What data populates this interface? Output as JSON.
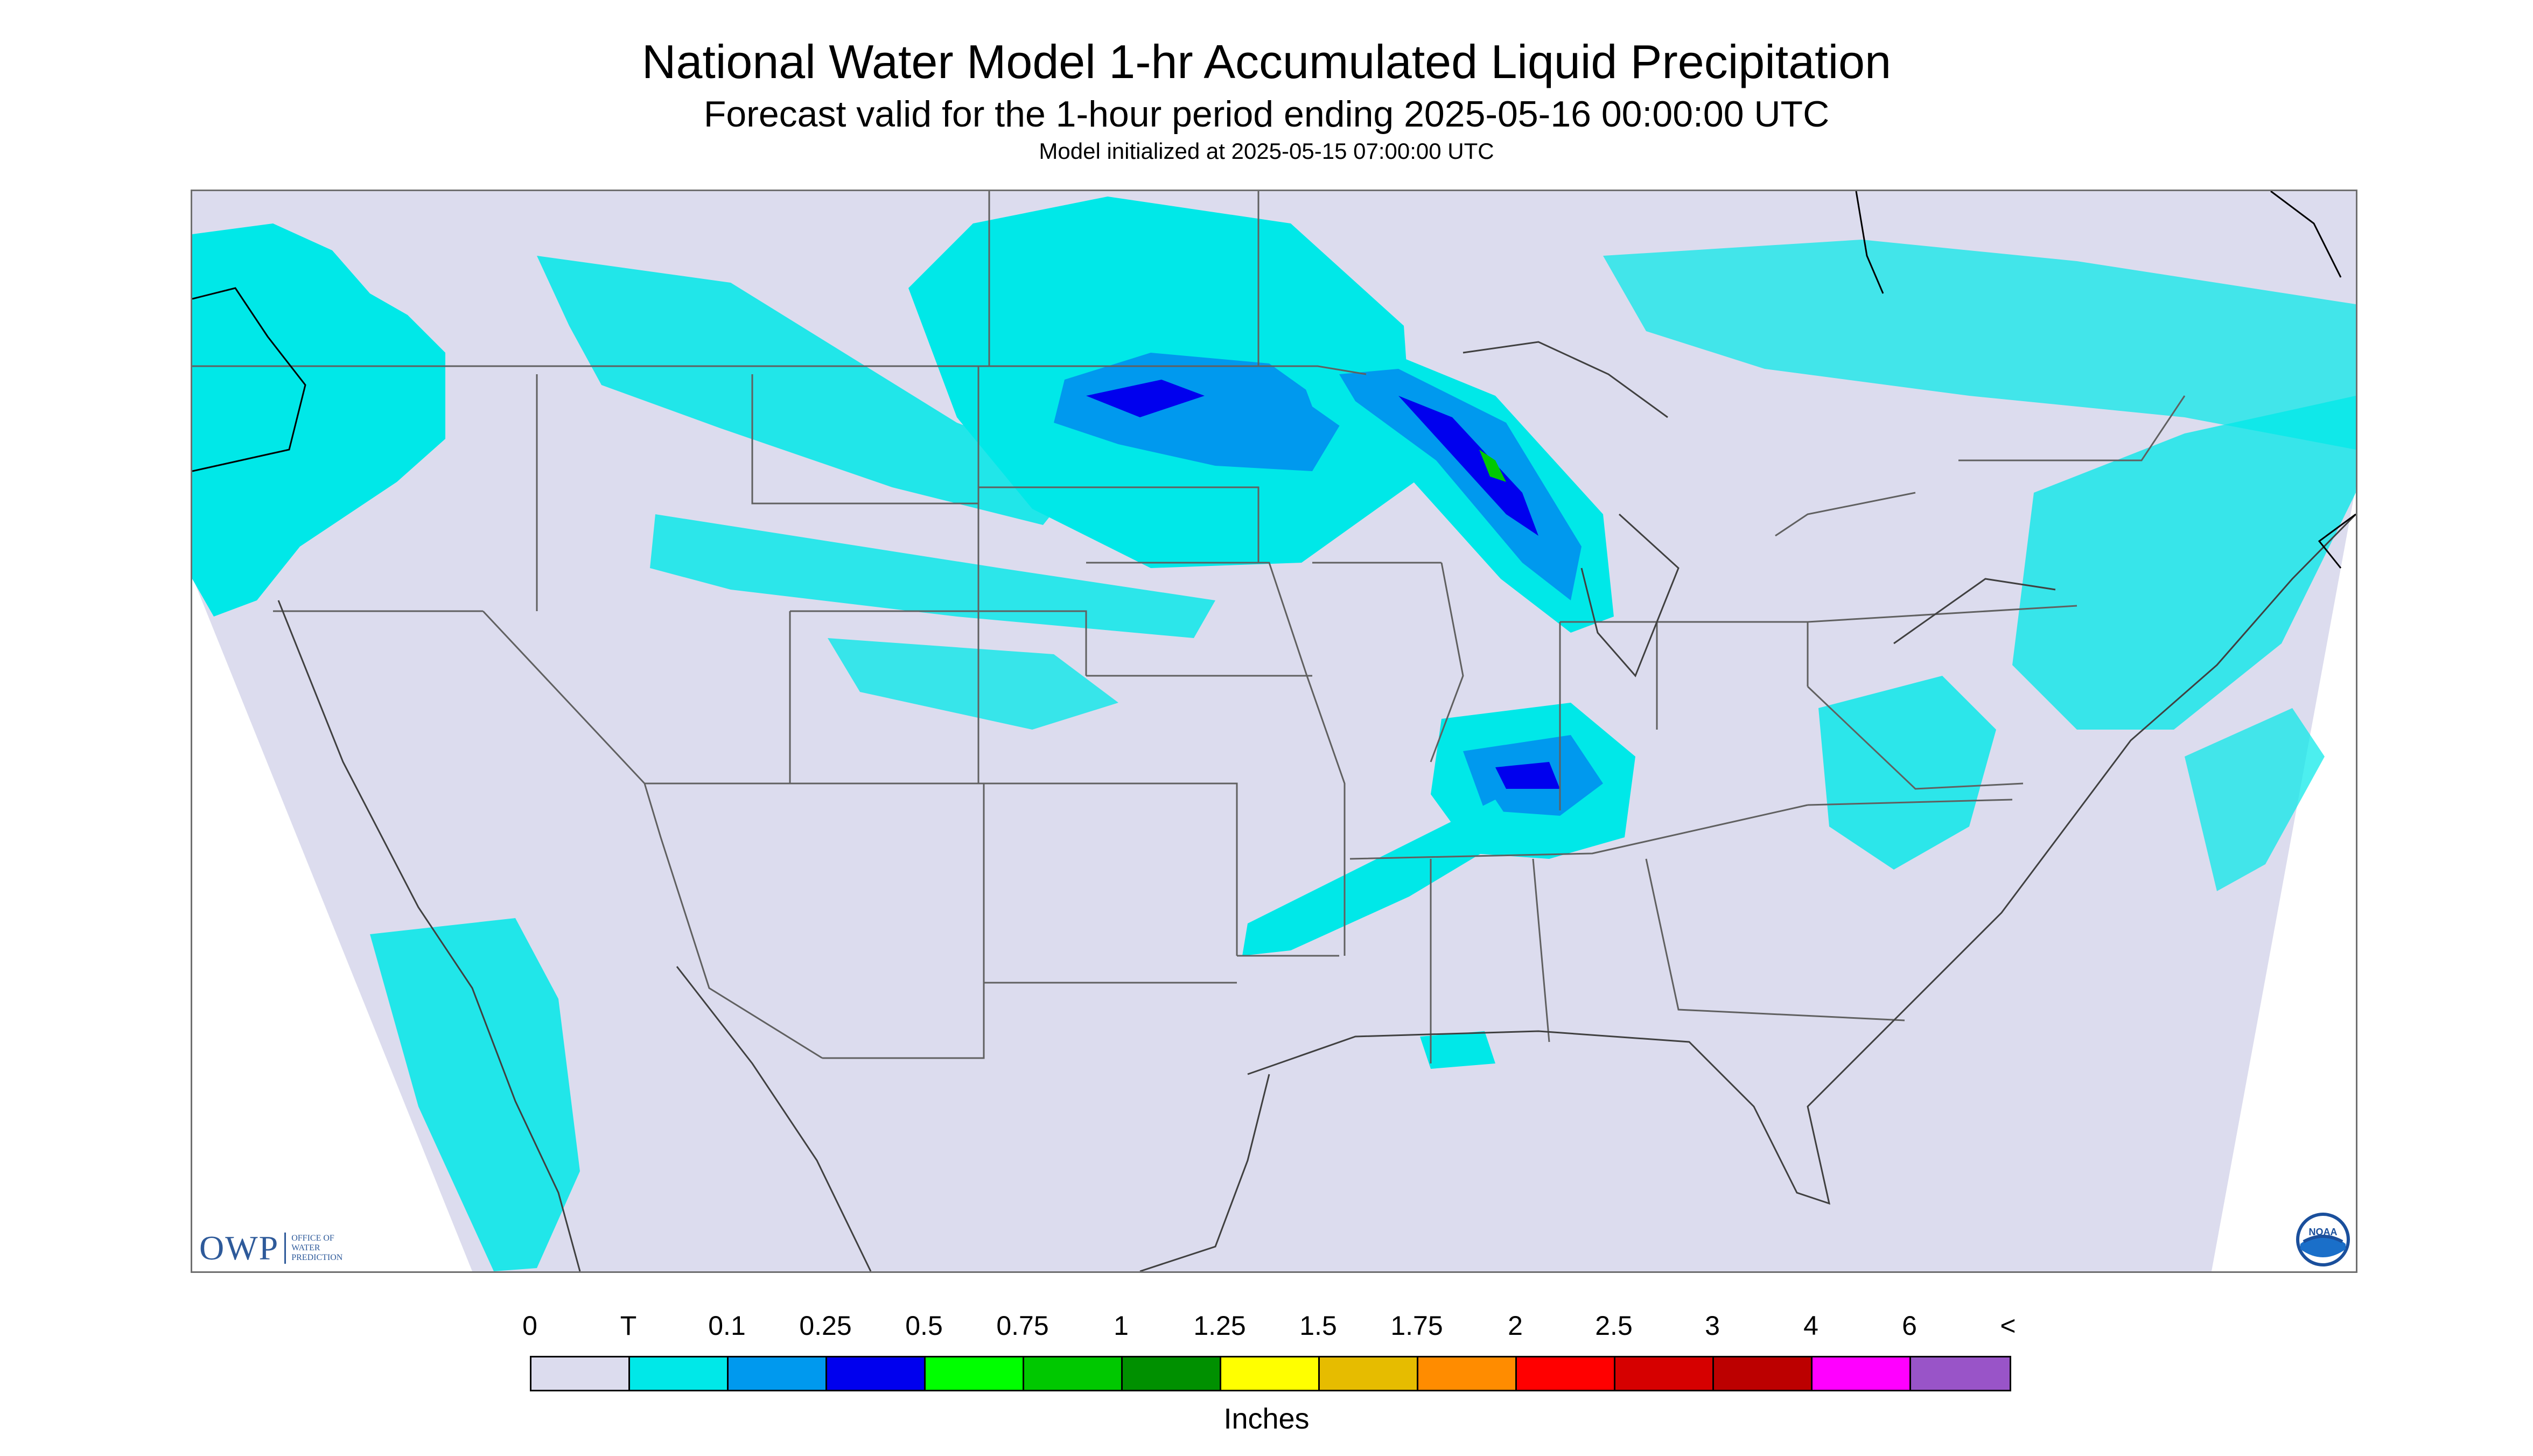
{
  "header": {
    "title": "National Water Model 1-hr Accumulated Liquid Precipitation",
    "subtitle": "Forecast valid for the 1-hour period ending 2025-05-16 00:00:00 UTC",
    "init": "Model initialized at 2025-05-15 07:00:00 UTC"
  },
  "logos": {
    "owp": {
      "letters": "OWP",
      "line1": "OFFICE OF",
      "line2": "WATER",
      "line3": "PREDICTION"
    },
    "noaa": "NOAA"
  },
  "legend": {
    "labels": [
      "0",
      "T",
      "0.1",
      "0.25",
      "0.5",
      "0.75",
      "1",
      "1.25",
      "1.5",
      "1.75",
      "2",
      "2.5",
      "3",
      "4",
      "6",
      "<"
    ],
    "colors": [
      "#dcdcee",
      "#00e8e8",
      "#0099ee",
      "#0000ee",
      "#00ff00",
      "#00c800",
      "#009000",
      "#ffff00",
      "#e6bc00",
      "#ff8c00",
      "#ff0000",
      "#d60000",
      "#bc0000",
      "#ff00ff",
      "#9954c8"
    ],
    "units": "Inches"
  },
  "colors": {
    "no_precip": "#dcdcee",
    "trace": "#00e8e8",
    "light": "#0099ee",
    "moderate": "#0000ee",
    "heavy": "#00ff00",
    "boundary": "#606060"
  }
}
